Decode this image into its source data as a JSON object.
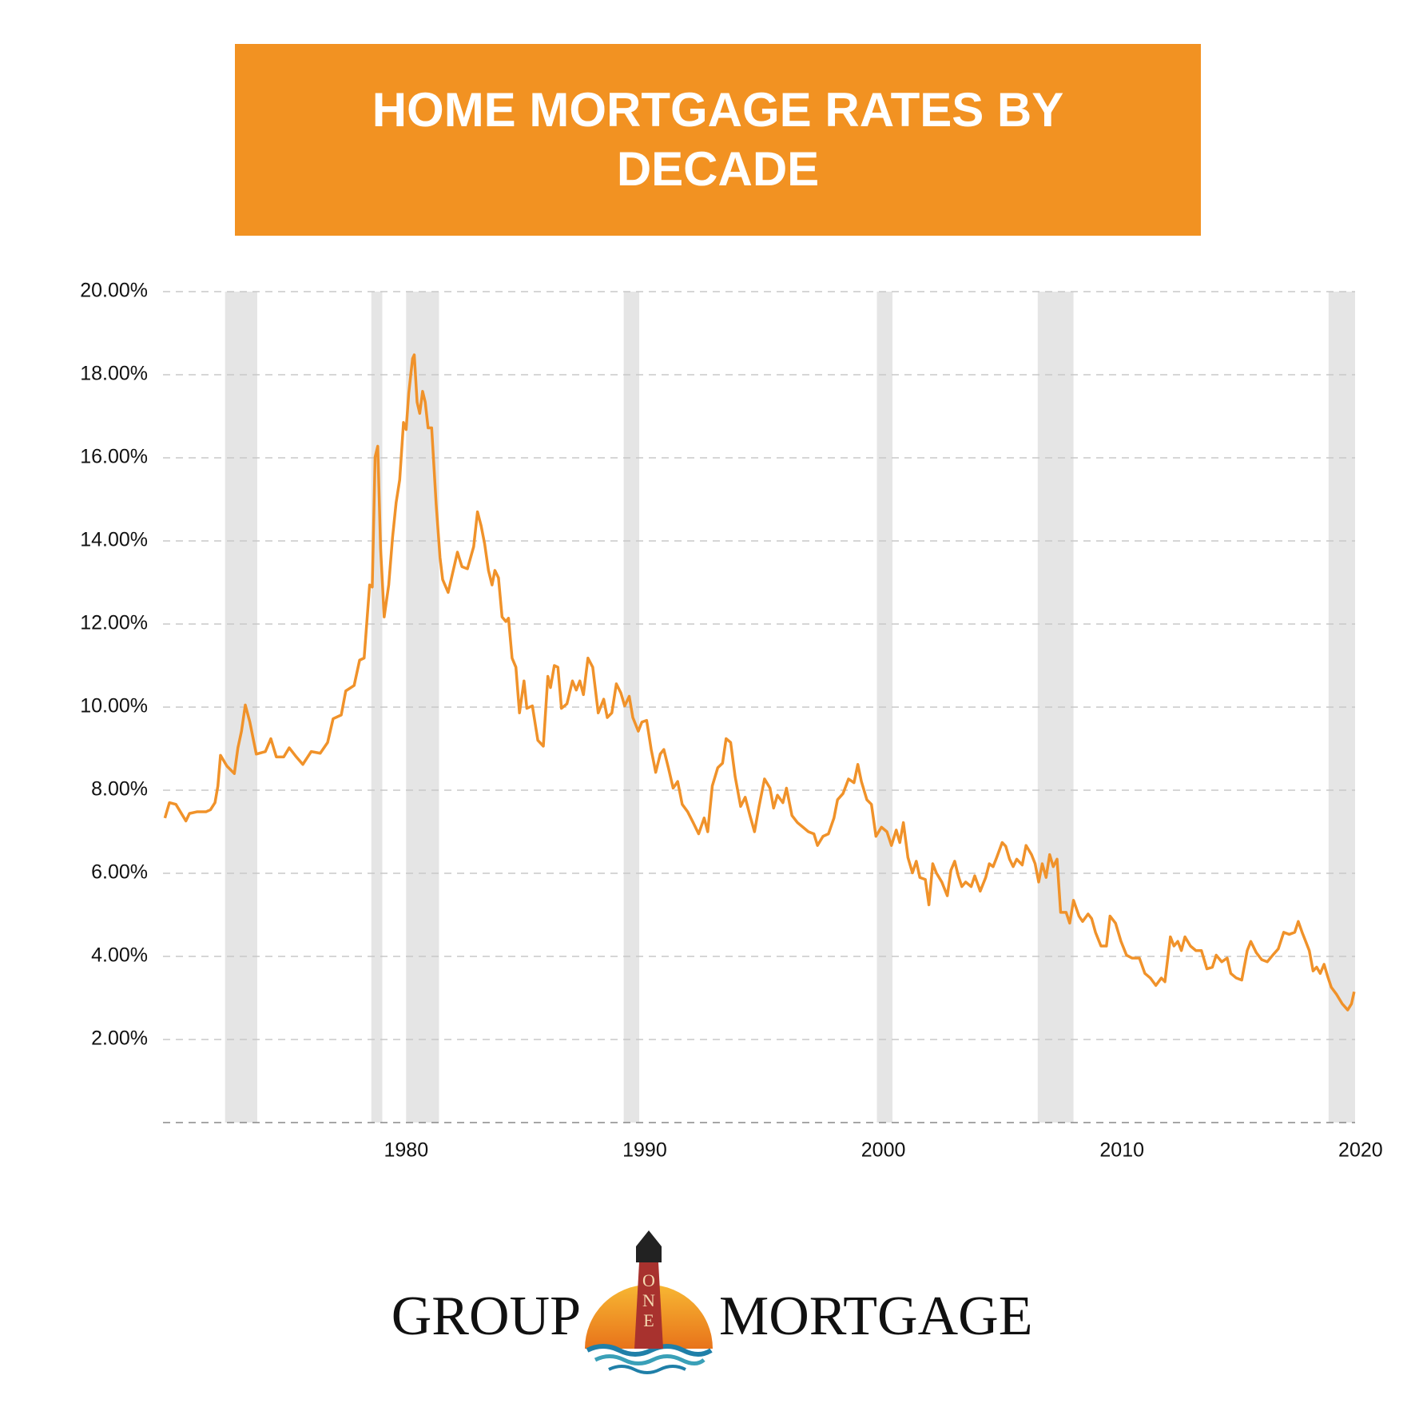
{
  "chart_data": {
    "type": "line",
    "title": "HOME MORTGAGE RATES BY DECADE",
    "x": [
      1969.89,
      1970.08,
      1970.35,
      1970.54,
      1970.77,
      1970.92,
      1971.23,
      1971.61,
      1971.8,
      1971.99,
      1972.11,
      1972.22,
      1972.49,
      1972.8,
      1972.95,
      1973.1,
      1973.26,
      1973.45,
      1973.72,
      1974.1,
      1974.33,
      1974.56,
      1974.87,
      1975.1,
      1975.4,
      1975.67,
      1976.02,
      1976.4,
      1976.71,
      1976.94,
      1977.28,
      1977.47,
      1977.82,
      1978.05,
      1978.24,
      1978.47,
      1978.58,
      1978.7,
      1978.81,
      1978.93,
      1979.08,
      1979.27,
      1979.43,
      1979.58,
      1979.73,
      1979.89,
      1980.0,
      1980.11,
      1980.27,
      1980.34,
      1980.46,
      1980.57,
      1980.69,
      1980.8,
      1980.92,
      1981.07,
      1981.26,
      1981.42,
      1981.53,
      1981.76,
      1981.99,
      1982.15,
      1982.34,
      1982.57,
      1982.83,
      1982.99,
      1983.14,
      1983.29,
      1983.45,
      1983.6,
      1983.72,
      1983.87,
      1984.02,
      1984.18,
      1984.29,
      1984.44,
      1984.6,
      1984.75,
      1984.94,
      1985.06,
      1985.29,
      1985.52,
      1985.75,
      1985.94,
      1986.05,
      1986.21,
      1986.36,
      1986.51,
      1986.74,
      1986.97,
      1987.13,
      1987.28,
      1987.43,
      1987.62,
      1987.82,
      1988.05,
      1988.28,
      1988.43,
      1988.62,
      1988.81,
      1989.0,
      1989.16,
      1989.35,
      1989.5,
      1989.73,
      1989.88,
      1990.08,
      1990.27,
      1990.46,
      1990.65,
      1990.8,
      1990.99,
      1991.19,
      1991.38,
      1991.57,
      1991.8,
      1992.03,
      1992.26,
      1992.49,
      1992.64,
      1992.83,
      1993.06,
      1993.26,
      1993.41,
      1993.6,
      1993.79,
      1994.02,
      1994.21,
      1994.41,
      1994.6,
      1994.79,
      1995.02,
      1995.25,
      1995.4,
      1995.56,
      1995.79,
      1995.94,
      1996.17,
      1996.4,
      1996.63,
      1996.86,
      1997.09,
      1997.24,
      1997.47,
      1997.7,
      1997.93,
      1998.08,
      1998.31,
      1998.54,
      1998.77,
      1998.93,
      1999.08,
      1999.31,
      1999.5,
      1999.69,
      1999.92,
      2000.15,
      2000.34,
      2000.54,
      2000.69,
      2000.84,
      2001.03,
      2001.22,
      2001.38,
      2001.53,
      2001.76,
      2001.91,
      2002.07,
      2002.22,
      2002.45,
      2002.68,
      2002.83,
      2002.99,
      2003.14,
      2003.29,
      2003.45,
      2003.68,
      2003.83,
      2004.06,
      2004.29,
      2004.44,
      2004.6,
      2004.75,
      2004.98,
      2005.13,
      2005.29,
      2005.44,
      2005.59,
      2005.82,
      2005.98,
      2006.21,
      2006.36,
      2006.51,
      2006.66,
      2006.82,
      2006.97,
      2007.12,
      2007.28,
      2007.43,
      2007.66,
      2007.81,
      2007.97,
      2008.2,
      2008.35,
      2008.58,
      2008.73,
      2008.89,
      2009.12,
      2009.35,
      2009.5,
      2009.73,
      2009.96,
      2010.19,
      2010.42,
      2010.73,
      2010.96,
      2011.19,
      2011.42,
      2011.65,
      2011.8,
      2012.03,
      2012.18,
      2012.34,
      2012.49,
      2012.64,
      2012.87,
      2013.1,
      2013.33,
      2013.56,
      2013.79,
      2013.95,
      2014.18,
      2014.41,
      2014.56,
      2014.79,
      2015.02,
      2015.25,
      2015.4,
      2015.63,
      2015.86,
      2016.09,
      2016.32,
      2016.55,
      2016.78,
      2017.01,
      2017.24,
      2017.39,
      2017.55,
      2017.7,
      2017.85,
      2018.01,
      2018.16,
      2018.31,
      2018.47,
      2018.62,
      2018.77,
      2019.0,
      2019.23,
      2019.46,
      2019.62,
      2019.73
    ],
    "values": [
      7.33,
      7.7,
      7.66,
      7.48,
      7.26,
      7.44,
      7.48,
      7.48,
      7.53,
      7.7,
      8.1,
      8.84,
      8.58,
      8.4,
      9.02,
      9.42,
      10.05,
      9.64,
      8.87,
      8.93,
      9.24,
      8.8,
      8.8,
      9.02,
      8.8,
      8.62,
      8.93,
      8.89,
      9.15,
      9.72,
      9.81,
      10.39,
      10.52,
      11.13,
      11.18,
      12.94,
      12.89,
      16.02,
      16.28,
      13.82,
      12.17,
      12.94,
      14.08,
      14.92,
      15.47,
      16.85,
      16.68,
      17.56,
      18.39,
      18.48,
      17.34,
      17.07,
      17.6,
      17.34,
      16.72,
      16.72,
      14.87,
      13.6,
      13.07,
      12.76,
      13.33,
      13.73,
      13.38,
      13.33,
      13.86,
      14.7,
      14.37,
      13.93,
      13.29,
      12.94,
      13.29,
      13.11,
      12.17,
      12.06,
      12.14,
      11.18,
      10.96,
      9.86,
      10.63,
      9.97,
      10.03,
      9.2,
      9.06,
      10.74,
      10.47,
      11.0,
      10.96,
      9.97,
      10.08,
      10.63,
      10.41,
      10.63,
      10.3,
      11.18,
      10.96,
      9.86,
      10.19,
      9.75,
      9.86,
      10.56,
      10.34,
      10.03,
      10.26,
      9.75,
      9.42,
      9.64,
      9.68,
      8.98,
      8.43,
      8.87,
      8.98,
      8.54,
      8.05,
      8.21,
      7.66,
      7.48,
      7.22,
      6.95,
      7.33,
      7.0,
      8.1,
      8.54,
      8.65,
      9.24,
      9.15,
      8.32,
      7.61,
      7.83,
      7.39,
      7.0,
      7.61,
      8.27,
      8.05,
      7.57,
      7.88,
      7.7,
      8.05,
      7.39,
      7.22,
      7.11,
      7.0,
      6.95,
      6.67,
      6.89,
      6.95,
      7.33,
      7.77,
      7.92,
      8.27,
      8.18,
      8.62,
      8.21,
      7.77,
      7.66,
      6.89,
      7.11,
      7.0,
      6.67,
      7.04,
      6.74,
      7.22,
      6.38,
      6.01,
      6.29,
      5.9,
      5.85,
      5.24,
      6.23,
      6.01,
      5.79,
      5.46,
      6.07,
      6.29,
      5.94,
      5.68,
      5.79,
      5.68,
      5.94,
      5.57,
      5.9,
      6.23,
      6.16,
      6.38,
      6.74,
      6.65,
      6.34,
      6.16,
      6.34,
      6.2,
      6.67,
      6.45,
      6.23,
      5.79,
      6.23,
      5.9,
      6.45,
      6.16,
      6.34,
      5.06,
      5.06,
      4.8,
      5.35,
      4.97,
      4.84,
      5.02,
      4.91,
      4.58,
      4.25,
      4.25,
      4.97,
      4.8,
      4.36,
      4.03,
      3.96,
      3.96,
      3.59,
      3.48,
      3.3,
      3.48,
      3.39,
      4.47,
      4.25,
      4.36,
      4.14,
      4.47,
      4.25,
      4.14,
      4.14,
      3.7,
      3.74,
      4.03,
      3.87,
      3.96,
      3.59,
      3.48,
      3.43,
      4.14,
      4.36,
      4.09,
      3.92,
      3.87,
      4.03,
      4.18,
      4.58,
      4.53,
      4.58,
      4.84,
      4.58,
      4.36,
      4.14,
      3.65,
      3.74,
      3.59,
      3.81,
      3.52,
      3.26,
      3.08,
      2.86,
      2.71,
      2.86,
      3.15
    ],
    "color": "#f0922a",
    "xlim": [
      1969.81,
      2019.77
    ],
    "xticks": [
      1980,
      1990,
      2000,
      2010,
      2020
    ],
    "ylim": [
      0,
      20
    ],
    "yticks": [
      {
        "value": 2,
        "label": "2.00%"
      },
      {
        "value": 4,
        "label": "4.00%"
      },
      {
        "value": 6,
        "label": "6.00%"
      },
      {
        "value": 8,
        "label": "8.00%"
      },
      {
        "value": 10,
        "label": "10.00%"
      },
      {
        "value": 12,
        "label": "12.00%"
      },
      {
        "value": 14,
        "label": "14.00%"
      },
      {
        "value": 16,
        "label": "16.00%"
      },
      {
        "value": 18,
        "label": "18.00%"
      },
      {
        "value": 20,
        "label": "20.00%"
      }
    ],
    "grid": true,
    "shaded_ranges": [
      [
        1972.41,
        1973.76
      ],
      [
        1978.54,
        1979.0
      ],
      [
        1980.0,
        1981.38
      ],
      [
        1989.12,
        1989.77
      ],
      [
        1999.73,
        2000.38
      ],
      [
        2006.47,
        2007.97
      ],
      [
        2018.66,
        2019.77
      ]
    ]
  },
  "logo": {
    "left": "GROUP",
    "center": "ONE",
    "right": "MORTGAGE"
  }
}
